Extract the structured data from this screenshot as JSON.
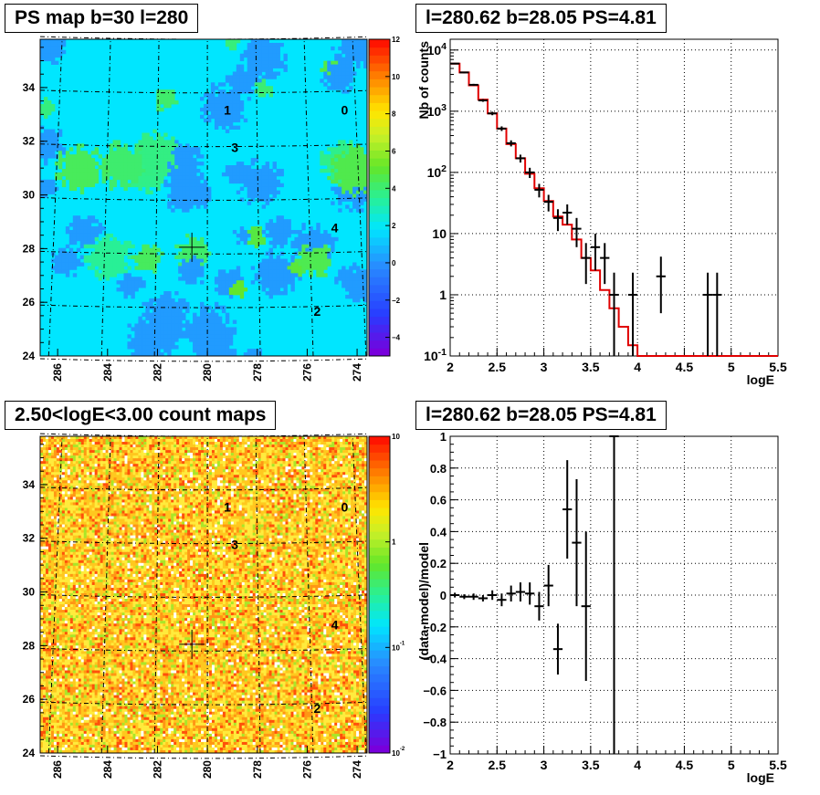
{
  "panels": {
    "ps_map": {
      "title": "PS map b=30 l=280"
    },
    "spectrum": {
      "title": "l=280.62 b=28.05 PS=4.81"
    },
    "count_map": {
      "title": "2.50<logE<3.00 count maps"
    },
    "residual": {
      "title": "l=280.62 b=28.05 PS=4.81"
    }
  },
  "chart_data": [
    {
      "type": "heatmap",
      "name": "ps_map",
      "title": "PS map b=30 l=280",
      "x_ticks": [
        "286",
        "284",
        "282",
        "280",
        "278",
        "276",
        "274"
      ],
      "y_ticks": [
        "24",
        "26",
        "28",
        "30",
        "32",
        "34"
      ],
      "xlim": [
        286.7,
        273.6
      ],
      "ylim": [
        24,
        35.8
      ],
      "colorbar_ticks": [
        "12",
        "10",
        "8",
        "6",
        "4",
        "2",
        "0",
        "−2",
        "−4"
      ],
      "colorbar_range": [
        -5,
        12
      ],
      "background_value": 0.5,
      "grid": "galactic coordinate grid (dashed)",
      "marker": {
        "l": 280.62,
        "b": 28.05
      },
      "sources": [
        {
          "label": "0",
          "l": 274.5,
          "b": 33.0
        },
        {
          "label": "1",
          "l": 279.2,
          "b": 33.0
        },
        {
          "label": "3",
          "l": 278.9,
          "b": 31.6
        },
        {
          "label": "4",
          "l": 274.9,
          "b": 28.6
        },
        {
          "label": "2",
          "l": 275.6,
          "b": 25.5
        }
      ]
    },
    {
      "type": "line",
      "name": "spectrum",
      "title": "l=280.62 b=28.05 PS=4.81",
      "xlabel": "logE",
      "ylabel": "Nb of counts",
      "xlim": [
        2,
        5.5
      ],
      "ylim": [
        0.1,
        15000
      ],
      "y_scale": "log",
      "grid": true,
      "x_ticks": [
        "2",
        "2.5",
        "3",
        "3.5",
        "4",
        "4.5",
        "5",
        "5.5"
      ],
      "y_ticks": [
        "10^{-1}",
        "1",
        "10",
        "10^{2}",
        "10^{3}",
        "10^{4}"
      ],
      "data_points": {
        "x": [
          2.05,
          2.15,
          2.25,
          2.35,
          2.45,
          2.55,
          2.65,
          2.75,
          2.85,
          2.95,
          3.05,
          3.15,
          3.25,
          3.35,
          3.45,
          3.55,
          3.65,
          3.75,
          3.95,
          4.25,
          4.75,
          4.85
        ],
        "y": [
          6000,
          4300,
          2700,
          1500,
          920,
          520,
          300,
          170,
          100,
          52,
          33,
          18,
          22,
          12,
          4,
          6,
          4,
          1,
          1,
          2,
          1,
          1
        ],
        "err_low": [
          150,
          130,
          100,
          75,
          60,
          45,
          34,
          25,
          19,
          13,
          10,
          7,
          8,
          6,
          2.5,
          3.5,
          2.5,
          0.99,
          0.99,
          1.5,
          0.99,
          0.99
        ],
        "err_high": [
          150,
          130,
          100,
          75,
          60,
          45,
          34,
          25,
          19,
          13,
          10,
          7,
          8,
          6,
          3,
          4,
          3,
          1.3,
          1.3,
          2.2,
          1.3,
          1.3
        ]
      },
      "model": {
        "edges": [
          2.0,
          2.1,
          2.2,
          2.3,
          2.4,
          2.5,
          2.6,
          2.7,
          2.8,
          2.9,
          3.0,
          3.1,
          3.2,
          3.3,
          3.4,
          3.5,
          3.6,
          3.7,
          3.8,
          3.9,
          4.0,
          5.5
        ],
        "values": [
          6000,
          4300,
          2650,
          1550,
          920,
          520,
          290,
          170,
          95,
          55,
          34,
          19,
          14,
          8,
          4,
          2.5,
          1.2,
          0.6,
          0.3,
          0.15,
          0.1
        ]
      }
    },
    {
      "type": "heatmap",
      "name": "count_map",
      "title": "2.50<logE<3.00 count maps",
      "x_ticks": [
        "286",
        "284",
        "282",
        "280",
        "278",
        "276",
        "274"
      ],
      "y_ticks": [
        "24",
        "26",
        "28",
        "30",
        "32",
        "34"
      ],
      "xlim": [
        286.7,
        273.6
      ],
      "ylim": [
        24,
        35.8
      ],
      "colorbar_ticks": [
        "10",
        "1",
        "10^{-1}",
        "10^{-2}"
      ],
      "colorbar_scale": "log",
      "colorbar_range": [
        0.01,
        10
      ],
      "grid": "galactic coordinate grid (dashed)",
      "marker": {
        "l": 280.62,
        "b": 28.05
      },
      "sources": [
        {
          "label": "0",
          "l": 274.5,
          "b": 33.0
        },
        {
          "label": "1",
          "l": 279.2,
          "b": 33.0
        },
        {
          "label": "3",
          "l": 278.9,
          "b": 31.6
        },
        {
          "label": "4",
          "l": 274.9,
          "b": 28.6
        },
        {
          "label": "2",
          "l": 275.6,
          "b": 25.5
        }
      ]
    },
    {
      "type": "scatter",
      "name": "residual",
      "title": "l=280.62 b=28.05 PS=4.81",
      "xlabel": "logE",
      "ylabel": "(data-model)/model",
      "xlim": [
        2,
        5.5
      ],
      "ylim": [
        -1,
        1
      ],
      "grid": true,
      "x_ticks": [
        "2",
        "2.5",
        "3",
        "3.5",
        "4",
        "4.5",
        "5",
        "5.5"
      ],
      "y_ticks": [
        "−1",
        "−0.8",
        "−0.6",
        "−0.4",
        "−0.2",
        "0",
        "0.2",
        "0.4",
        "0.6",
        "0.8",
        "1"
      ],
      "points": {
        "x": [
          2.05,
          2.15,
          2.25,
          2.35,
          2.45,
          2.55,
          2.65,
          2.75,
          2.85,
          2.95,
          3.05,
          3.15,
          3.25,
          3.35,
          3.45,
          3.75
        ],
        "y": [
          0.0,
          -0.01,
          -0.01,
          -0.02,
          0.0,
          -0.03,
          0.01,
          0.02,
          0.01,
          -0.07,
          0.06,
          -0.34,
          0.54,
          0.33,
          -0.07,
          1.0
        ],
        "err": [
          0.015,
          0.015,
          0.02,
          0.02,
          0.03,
          0.04,
          0.05,
          0.06,
          0.07,
          0.09,
          0.13,
          0.16,
          0.31,
          0.4,
          0.47,
          2.0
        ]
      }
    }
  ]
}
